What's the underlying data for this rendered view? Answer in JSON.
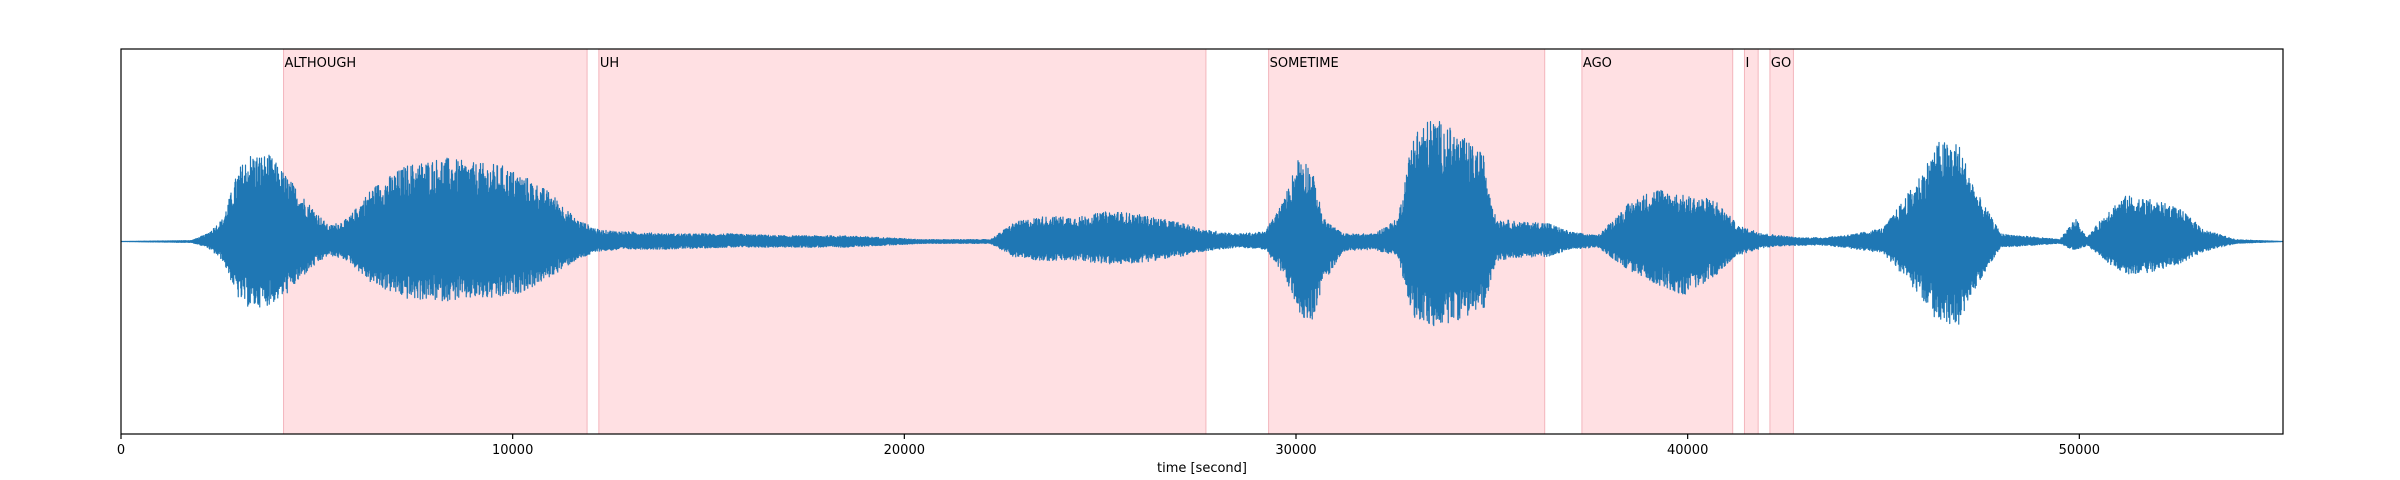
{
  "chart_data": {
    "type": "line",
    "title": "",
    "xlabel": "time [second]",
    "ylabel": "",
    "xlim": [
      0,
      55200
    ],
    "ylim": [
      -1.0,
      1.0
    ],
    "xticks": [
      0,
      10000,
      20000,
      30000,
      40000,
      50000
    ],
    "xtick_labels": [
      "0",
      "10000",
      "20000",
      "30000",
      "40000",
      "50000"
    ],
    "line_color": "#1f77b4",
    "segment_color": "#ffe0e3",
    "segment_edge_color": "#f4b6bd",
    "word_segments": [
      {
        "label": "ALTHOUGH",
        "start": 4150,
        "end": 11900
      },
      {
        "label": "UH",
        "start": 12200,
        "end": 27700
      },
      {
        "label": "SOMETIME",
        "start": 29300,
        "end": 36350
      },
      {
        "label": "AGO",
        "start": 37300,
        "end": 41150
      },
      {
        "label": "I",
        "start": 41450,
        "end": 41800
      },
      {
        "label": "GO",
        "start": 42100,
        "end": 42700
      }
    ],
    "waveform_envelope": [
      [
        0,
        0.0,
        0.0
      ],
      [
        1800,
        0.005,
        0.005
      ],
      [
        2200,
        0.04,
        0.03
      ],
      [
        2600,
        0.12,
        0.1
      ],
      [
        3000,
        0.38,
        0.3
      ],
      [
        3300,
        0.46,
        0.35
      ],
      [
        3800,
        0.45,
        0.33
      ],
      [
        4200,
        0.35,
        0.28
      ],
      [
        4800,
        0.2,
        0.15
      ],
      [
        5300,
        0.08,
        0.07
      ],
      [
        5800,
        0.12,
        0.1
      ],
      [
        6400,
        0.28,
        0.22
      ],
      [
        7300,
        0.4,
        0.3
      ],
      [
        8200,
        0.44,
        0.31
      ],
      [
        9000,
        0.41,
        0.3
      ],
      [
        9700,
        0.4,
        0.3
      ],
      [
        10400,
        0.33,
        0.25
      ],
      [
        11000,
        0.25,
        0.18
      ],
      [
        11600,
        0.12,
        0.1
      ],
      [
        12200,
        0.06,
        0.05
      ],
      [
        13000,
        0.05,
        0.04
      ],
      [
        14000,
        0.04,
        0.04
      ],
      [
        15500,
        0.04,
        0.03
      ],
      [
        17000,
        0.03,
        0.03
      ],
      [
        18500,
        0.03,
        0.03
      ],
      [
        19500,
        0.02,
        0.02
      ],
      [
        20500,
        0.01,
        0.01
      ],
      [
        22200,
        0.01,
        0.01
      ],
      [
        22800,
        0.1,
        0.08
      ],
      [
        23500,
        0.13,
        0.1
      ],
      [
        24500,
        0.13,
        0.1
      ],
      [
        25300,
        0.16,
        0.12
      ],
      [
        26000,
        0.14,
        0.11
      ],
      [
        27000,
        0.1,
        0.08
      ],
      [
        27700,
        0.06,
        0.05
      ],
      [
        28500,
        0.04,
        0.03
      ],
      [
        29200,
        0.05,
        0.04
      ],
      [
        29700,
        0.22,
        0.18
      ],
      [
        30100,
        0.47,
        0.38
      ],
      [
        30400,
        0.38,
        0.42
      ],
      [
        30700,
        0.12,
        0.22
      ],
      [
        31200,
        0.04,
        0.05
      ],
      [
        32000,
        0.04,
        0.04
      ],
      [
        32600,
        0.12,
        0.08
      ],
      [
        33000,
        0.58,
        0.4
      ],
      [
        33500,
        0.65,
        0.45
      ],
      [
        34100,
        0.57,
        0.41
      ],
      [
        34800,
        0.45,
        0.35
      ],
      [
        35100,
        0.12,
        0.1
      ],
      [
        35800,
        0.1,
        0.08
      ],
      [
        36400,
        0.1,
        0.08
      ],
      [
        37000,
        0.05,
        0.04
      ],
      [
        37700,
        0.03,
        0.03
      ],
      [
        38500,
        0.2,
        0.15
      ],
      [
        39200,
        0.28,
        0.22
      ],
      [
        39900,
        0.24,
        0.28
      ],
      [
        40700,
        0.22,
        0.18
      ],
      [
        41300,
        0.08,
        0.07
      ],
      [
        42000,
        0.04,
        0.03
      ],
      [
        42800,
        0.02,
        0.02
      ],
      [
        43500,
        0.02,
        0.02
      ],
      [
        44300,
        0.04,
        0.04
      ],
      [
        45000,
        0.07,
        0.06
      ],
      [
        45800,
        0.3,
        0.25
      ],
      [
        46400,
        0.52,
        0.42
      ],
      [
        46900,
        0.52,
        0.45
      ],
      [
        47400,
        0.25,
        0.22
      ],
      [
        48000,
        0.04,
        0.03
      ],
      [
        49500,
        0.01,
        0.01
      ],
      [
        49900,
        0.12,
        0.05
      ],
      [
        50200,
        0.02,
        0.02
      ],
      [
        50800,
        0.18,
        0.12
      ],
      [
        51200,
        0.24,
        0.17
      ],
      [
        51800,
        0.22,
        0.16
      ],
      [
        52500,
        0.18,
        0.12
      ],
      [
        53200,
        0.06,
        0.05
      ],
      [
        54000,
        0.01,
        0.01
      ],
      [
        55200,
        0.0,
        0.0
      ]
    ]
  }
}
